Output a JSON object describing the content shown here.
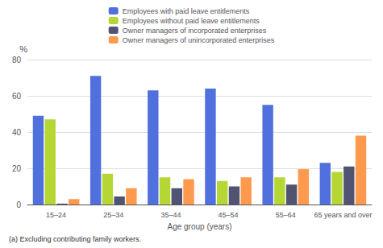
{
  "chart_data": {
    "type": "bar",
    "categories": [
      "15–24",
      "25–34",
      "35–44",
      "45–54",
      "55–64",
      "65 years and over"
    ],
    "series": [
      {
        "name": "Employees with paid leave entitlements",
        "values": [
          49,
          71,
          63,
          64,
          55,
          23
        ]
      },
      {
        "name": "Employees without paid leave entitlements",
        "values": [
          47,
          17,
          15,
          13,
          15,
          18
        ]
      },
      {
        "name": "Owner managers of incorporated enterprises",
        "values": [
          0.5,
          4.5,
          9,
          10,
          11,
          21
        ]
      },
      {
        "name": "Owner managers of unincorporated enterprises",
        "values": [
          3,
          9,
          14,
          15,
          19.5,
          38
        ]
      }
    ],
    "xlabel": "Age group (years)",
    "ylabel": "%",
    "annotation": "(a) Excluding contributing family workers.",
    "ylim": [
      0,
      80
    ],
    "yticks": [
      0,
      20,
      40,
      60,
      80
    ],
    "grid": true,
    "legend": "top"
  }
}
